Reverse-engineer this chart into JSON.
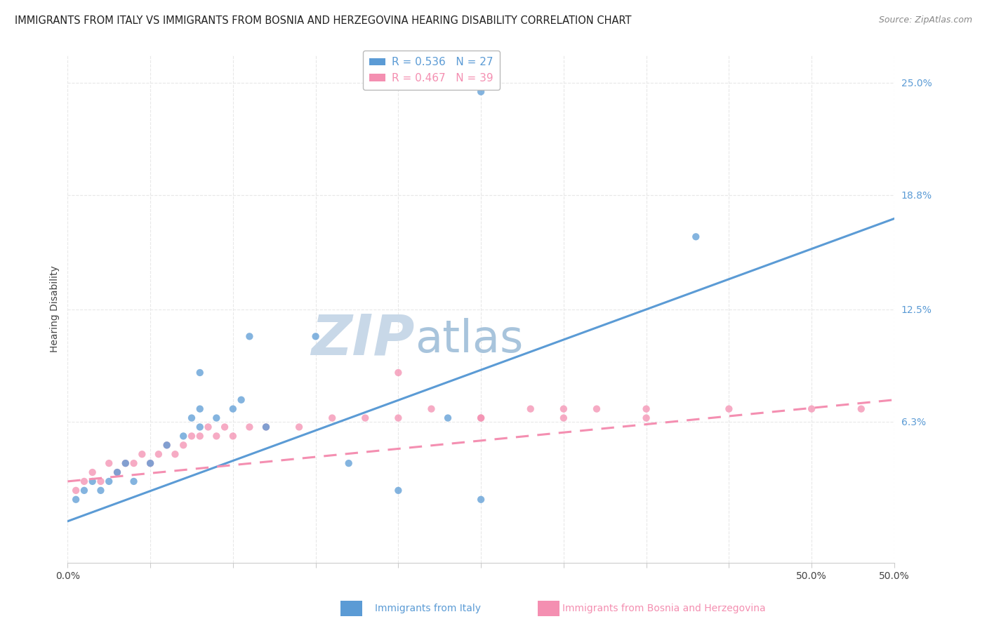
{
  "title": "IMMIGRANTS FROM ITALY VS IMMIGRANTS FROM BOSNIA AND HERZEGOVINA HEARING DISABILITY CORRELATION CHART",
  "source": "Source: ZipAtlas.com",
  "ylabel": "Hearing Disability",
  "yticks": [
    0.0,
    0.063,
    0.125,
    0.188,
    0.25
  ],
  "ytick_labels": [
    "",
    "6.3%",
    "12.5%",
    "18.8%",
    "25.0%"
  ],
  "xticks": [
    0.0,
    0.05,
    0.1,
    0.15,
    0.2,
    0.25,
    0.3,
    0.35,
    0.4,
    0.45,
    0.5
  ],
  "xtick_labels_show": {
    "0.0": "0.0%",
    "0.5": "50.0%"
  },
  "xmin": 0.0,
  "xmax": 0.5,
  "ymin": -0.015,
  "ymax": 0.265,
  "italy_color": "#5b9bd5",
  "bosnia_color": "#f48fb1",
  "italy_R": 0.536,
  "italy_N": 27,
  "bosnia_R": 0.467,
  "bosnia_N": 39,
  "legend_label_italy": "Immigrants from Italy",
  "legend_label_bosnia": "Immigrants from Bosnia and Herzegovina",
  "watermark_zip": "ZIP",
  "watermark_atlas": "atlas",
  "italy_scatter_x": [
    0.005,
    0.01,
    0.015,
    0.02,
    0.025,
    0.03,
    0.035,
    0.04,
    0.05,
    0.06,
    0.07,
    0.075,
    0.08,
    0.08,
    0.09,
    0.1,
    0.105,
    0.11,
    0.12,
    0.15,
    0.17,
    0.2,
    0.23,
    0.25,
    0.38,
    0.08,
    0.25
  ],
  "italy_scatter_y": [
    0.02,
    0.025,
    0.03,
    0.025,
    0.03,
    0.035,
    0.04,
    0.03,
    0.04,
    0.05,
    0.055,
    0.065,
    0.06,
    0.07,
    0.065,
    0.07,
    0.075,
    0.11,
    0.06,
    0.11,
    0.04,
    0.025,
    0.065,
    0.02,
    0.165,
    0.09,
    0.245
  ],
  "bosnia_scatter_x": [
    0.005,
    0.01,
    0.015,
    0.02,
    0.025,
    0.03,
    0.035,
    0.04,
    0.045,
    0.05,
    0.055,
    0.06,
    0.065,
    0.07,
    0.075,
    0.08,
    0.085,
    0.09,
    0.095,
    0.1,
    0.11,
    0.12,
    0.14,
    0.16,
    0.18,
    0.2,
    0.22,
    0.25,
    0.28,
    0.3,
    0.32,
    0.35,
    0.2,
    0.25,
    0.3,
    0.35,
    0.4,
    0.45,
    0.48
  ],
  "bosnia_scatter_y": [
    0.025,
    0.03,
    0.035,
    0.03,
    0.04,
    0.035,
    0.04,
    0.04,
    0.045,
    0.04,
    0.045,
    0.05,
    0.045,
    0.05,
    0.055,
    0.055,
    0.06,
    0.055,
    0.06,
    0.055,
    0.06,
    0.06,
    0.06,
    0.065,
    0.065,
    0.065,
    0.07,
    0.065,
    0.07,
    0.065,
    0.07,
    0.07,
    0.09,
    0.065,
    0.07,
    0.065,
    0.07,
    0.07,
    0.07
  ],
  "italy_line_x": [
    0.0,
    0.5
  ],
  "italy_line_y": [
    0.008,
    0.175
  ],
  "bosnia_line_x": [
    0.0,
    0.5
  ],
  "bosnia_line_y": [
    0.03,
    0.075
  ],
  "title_fontsize": 10.5,
  "source_fontsize": 9,
  "axis_label_fontsize": 10,
  "tick_fontsize": 10,
  "legend_fontsize": 11,
  "watermark_fontsize_zip": 58,
  "watermark_fontsize_atlas": 46,
  "watermark_color_zip": "#c8d8e8",
  "watermark_color_atlas": "#a8c4dc",
  "background_color": "#ffffff",
  "grid_color": "#e8e8e8",
  "grid_style": "--",
  "spine_color": "#cccccc"
}
